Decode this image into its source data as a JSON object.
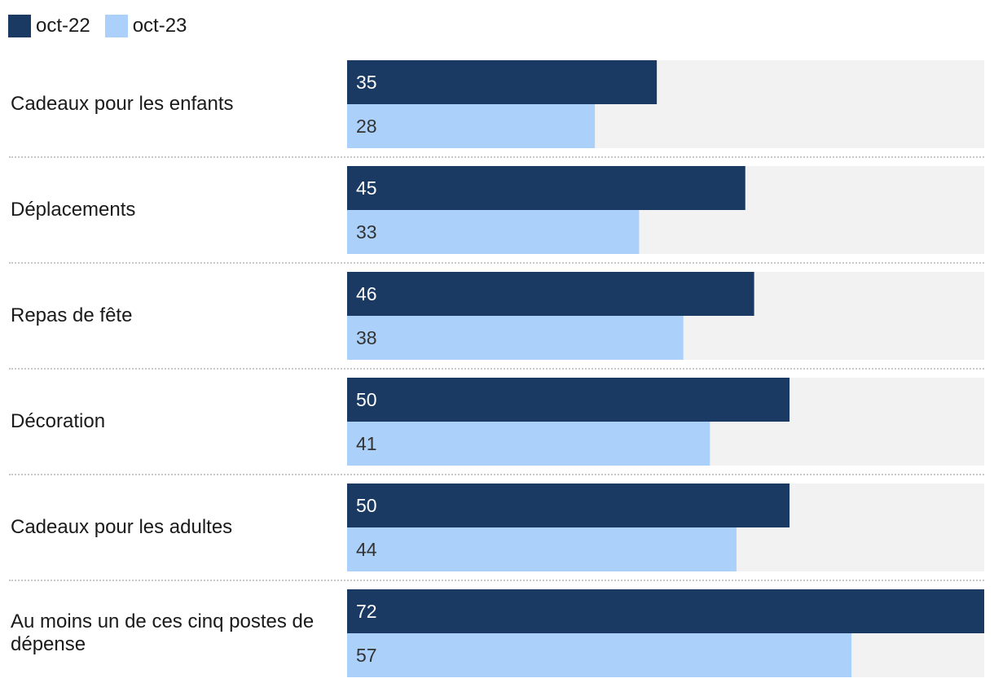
{
  "chart_data": {
    "type": "bar",
    "orientation": "horizontal",
    "categories": [
      "Cadeaux pour les enfants",
      "Déplacements",
      "Repas de fête",
      "Décoration",
      "Cadeaux pour les adultes",
      "Au moins un de ces cinq postes de dépense"
    ],
    "series": [
      {
        "name": "oct-22",
        "color": "#1a3a63",
        "label_color": "#ffffff",
        "values": [
          35,
          45,
          46,
          50,
          50,
          72
        ]
      },
      {
        "name": "oct-23",
        "color": "#abd1fb",
        "label_color": "#333333",
        "values": [
          28,
          33,
          38,
          41,
          44,
          57
        ]
      }
    ],
    "xlim": [
      0,
      72
    ],
    "track_color": "#f2f2f2",
    "legend_position": "top-left",
    "title": "",
    "xlabel": "",
    "ylabel": ""
  }
}
